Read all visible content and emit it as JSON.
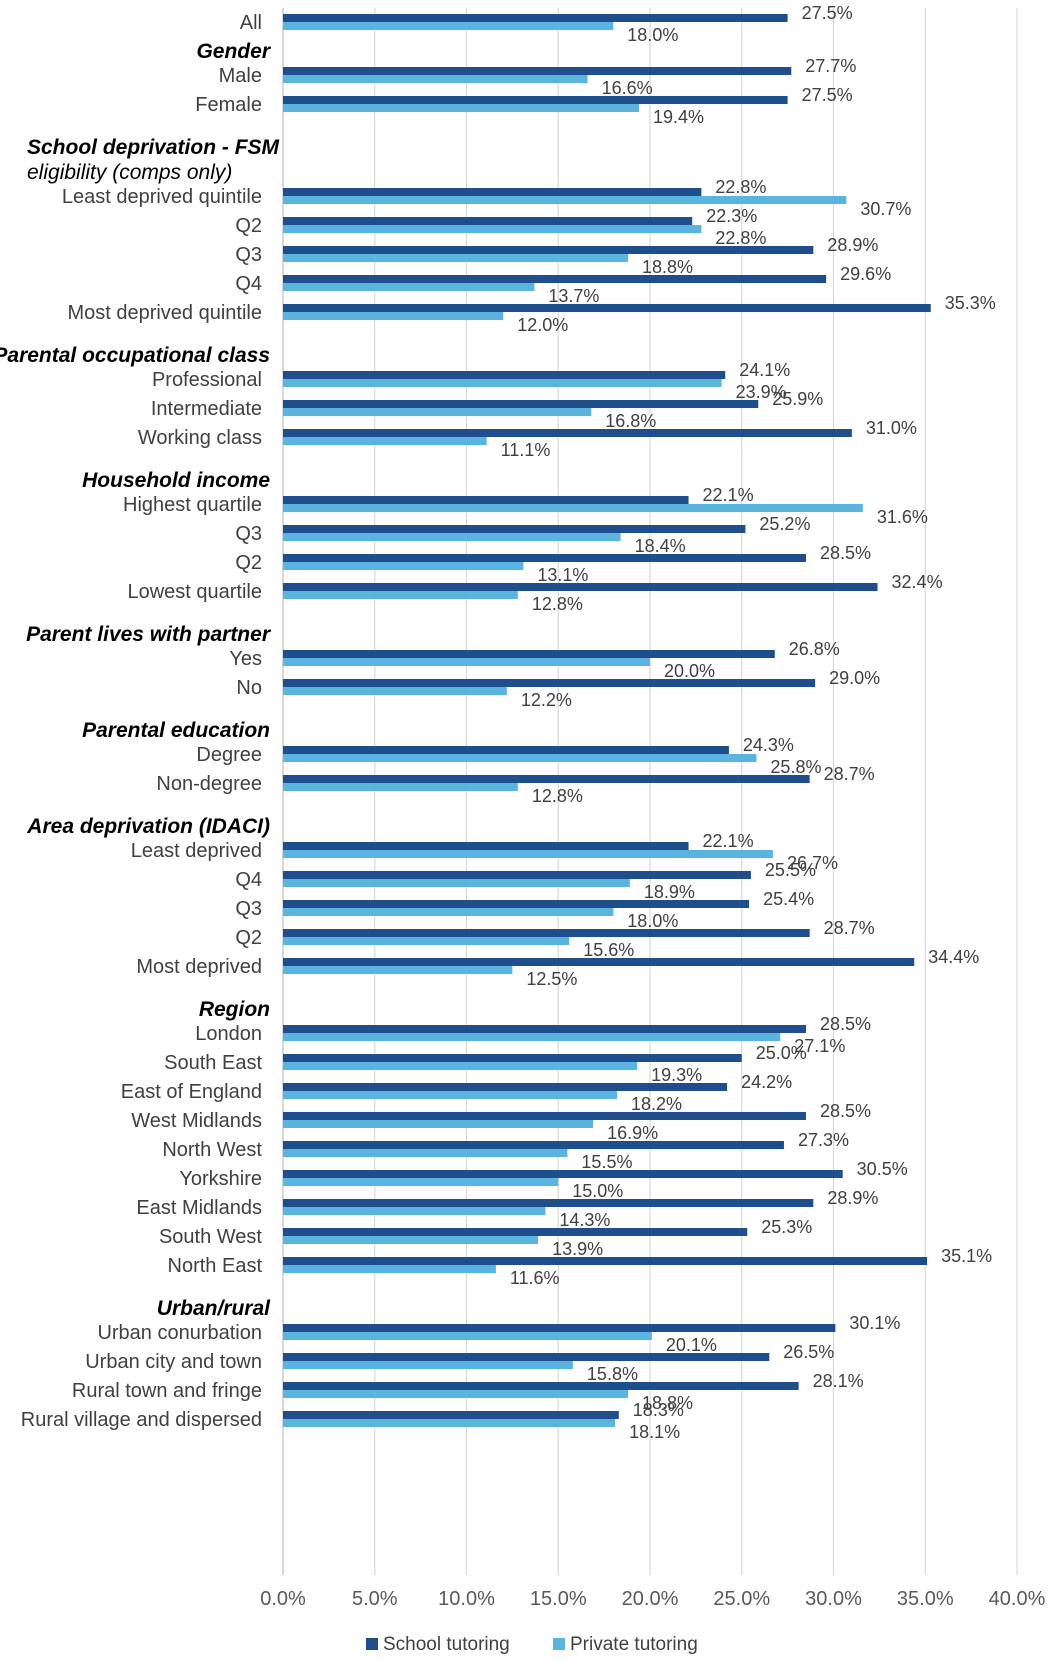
{
  "chart_data": {
    "type": "bar",
    "orientation": "horizontal",
    "xlim": [
      0,
      40
    ],
    "x_ticks": [
      "0.0%",
      "5.0%",
      "10.0%",
      "15.0%",
      "20.0%",
      "25.0%",
      "30.0%",
      "35.0%",
      "40.0%"
    ],
    "grid": true,
    "legend_position": "bottom",
    "series": [
      {
        "name": "School tutoring",
        "color": "#1f4e8c"
      },
      {
        "name": "Private tutoring",
        "color": "#5ab4e0"
      }
    ],
    "groups": [
      {
        "title": "",
        "rows": [
          {
            "label": "All",
            "school": 27.5,
            "school_label": "27.5%",
            "private": 18.0,
            "private_label": "18.0%"
          }
        ]
      },
      {
        "title": "Gender",
        "rows": [
          {
            "label": "Male",
            "school": 27.7,
            "school_label": "27.7%",
            "private": 16.6,
            "private_label": "16.6%"
          },
          {
            "label": "Female",
            "school": 27.5,
            "school_label": "27.5%",
            "private": 19.4,
            "private_label": "19.4%"
          }
        ]
      },
      {
        "title": "School deprivation -",
        "title_suffix": " FSM",
        "title_line2": "eligibility (comps only)",
        "rows": [
          {
            "label": "Least deprived quintile",
            "school": 22.8,
            "school_label": "22.8%",
            "private": 30.7,
            "private_label": "30.7%"
          },
          {
            "label": "Q2",
            "school": 22.3,
            "school_label": "22.3%",
            "private": 22.8,
            "private_label": "22.8%"
          },
          {
            "label": "Q3",
            "school": 28.9,
            "school_label": "28.9%",
            "private": 18.8,
            "private_label": "18.8%"
          },
          {
            "label": "Q4",
            "school": 29.6,
            "school_label": "29.6%",
            "private": 13.7,
            "private_label": "13.7%"
          },
          {
            "label": "Most deprived quintile",
            "school": 35.3,
            "school_label": "35.3%",
            "private": 12.0,
            "private_label": "12.0%"
          }
        ]
      },
      {
        "title": "Parental occupational class",
        "rows": [
          {
            "label": "Professional",
            "school": 24.1,
            "school_label": "24.1%",
            "private": 23.9,
            "private_label": "23.9%"
          },
          {
            "label": "Intermediate",
            "school": 25.9,
            "school_label": "25.9%",
            "private": 16.8,
            "private_label": "16.8%"
          },
          {
            "label": "Working class",
            "school": 31.0,
            "school_label": "31.0%",
            "private": 11.1,
            "private_label": "11.1%"
          }
        ]
      },
      {
        "title": "Household income",
        "rows": [
          {
            "label": "Highest quartile",
            "school": 22.1,
            "school_label": "22.1%",
            "private": 31.6,
            "private_label": "31.6%"
          },
          {
            "label": "Q3",
            "school": 25.2,
            "school_label": "25.2%",
            "private": 18.4,
            "private_label": "18.4%"
          },
          {
            "label": "Q2",
            "school": 28.5,
            "school_label": "28.5%",
            "private": 13.1,
            "private_label": "13.1%"
          },
          {
            "label": "Lowest quartile",
            "school": 32.4,
            "school_label": "32.4%",
            "private": 12.8,
            "private_label": "12.8%"
          }
        ]
      },
      {
        "title": "Parent lives with partner",
        "rows": [
          {
            "label": "Yes",
            "school": 26.8,
            "school_label": "26.8%",
            "private": 20.0,
            "private_label": "20.0%"
          },
          {
            "label": "No",
            "school": 29.0,
            "school_label": "29.0%",
            "private": 12.2,
            "private_label": "12.2%"
          }
        ]
      },
      {
        "title": "Parental education",
        "rows": [
          {
            "label": "Degree",
            "school": 24.3,
            "school_label": "24.3%",
            "private": 25.8,
            "private_label": "25.8%"
          },
          {
            "label": "Non-degree",
            "school": 28.7,
            "school_label": "28.7%",
            "private": 12.8,
            "private_label": "12.8%"
          }
        ]
      },
      {
        "title": "Area deprivation (IDACI)",
        "rows": [
          {
            "label": "Least deprived",
            "school": 22.1,
            "school_label": "22.1%",
            "private": 26.7,
            "private_label": "26.7%"
          },
          {
            "label": "Q4",
            "school": 25.5,
            "school_label": "25.5%",
            "private": 18.9,
            "private_label": "18.9%"
          },
          {
            "label": "Q3",
            "school": 25.4,
            "school_label": "25.4%",
            "private": 18.0,
            "private_label": "18.0%"
          },
          {
            "label": "Q2",
            "school": 28.7,
            "school_label": "28.7%",
            "private": 15.6,
            "private_label": "15.6%"
          },
          {
            "label": "Most deprived",
            "school": 34.4,
            "school_label": "34.4%",
            "private": 12.5,
            "private_label": "12.5%"
          }
        ]
      },
      {
        "title": "Region",
        "rows": [
          {
            "label": "London",
            "school": 28.5,
            "school_label": "28.5%",
            "private": 27.1,
            "private_label": "27.1%"
          },
          {
            "label": "South East",
            "school": 25.0,
            "school_label": "25.0%",
            "private": 19.3,
            "private_label": "19.3%"
          },
          {
            "label": "East of England",
            "school": 24.2,
            "school_label": "24.2%",
            "private": 18.2,
            "private_label": "18.2%"
          },
          {
            "label": "West Midlands",
            "school": 28.5,
            "school_label": "28.5%",
            "private": 16.9,
            "private_label": "16.9%"
          },
          {
            "label": "North West",
            "school": 27.3,
            "school_label": "27.3%",
            "private": 15.5,
            "private_label": "15.5%"
          },
          {
            "label": "Yorkshire",
            "school": 30.5,
            "school_label": "30.5%",
            "private": 15.0,
            "private_label": "15.0%"
          },
          {
            "label": "East Midlands",
            "school": 28.9,
            "school_label": "28.9%",
            "private": 14.3,
            "private_label": "14.3%"
          },
          {
            "label": "South West",
            "school": 25.3,
            "school_label": "25.3%",
            "private": 13.9,
            "private_label": "13.9%"
          },
          {
            "label": "North East",
            "school": 35.1,
            "school_label": "35.1%",
            "private": 11.6,
            "private_label": "11.6%"
          }
        ]
      },
      {
        "title": "Urban/rural",
        "rows": [
          {
            "label": "Urban conurbation",
            "school": 30.1,
            "school_label": "30.1%",
            "private": 20.1,
            "private_label": "20.1%"
          },
          {
            "label": "Urban city and town",
            "school": 26.5,
            "school_label": "26.5%",
            "private": 15.8,
            "private_label": "15.8%"
          },
          {
            "label": "Rural town and fringe",
            "school": 28.1,
            "school_label": "28.1%",
            "private": 18.8,
            "private_label": "18.8%"
          },
          {
            "label": "Rural village and dispersed",
            "school": 18.3,
            "school_label": "18.3%",
            "private": 18.1,
            "private_label": "18.1%"
          }
        ]
      }
    ]
  }
}
